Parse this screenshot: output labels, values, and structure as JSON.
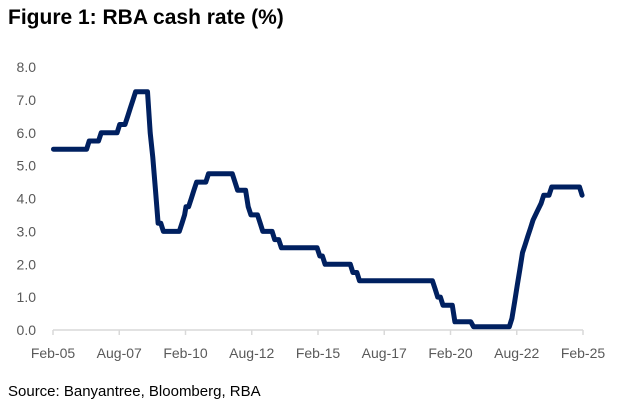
{
  "chart_data": {
    "type": "line",
    "title": "Figure 1: RBA cash rate (%)",
    "source": "Source: Banyantree, Bloomberg, RBA",
    "xlabel": "",
    "ylabel": "",
    "ylim": [
      0,
      8
    ],
    "xlim": [
      2005.083,
      2025.083
    ],
    "y_ticks": [
      "0.0",
      "1.0",
      "2.0",
      "3.0",
      "4.0",
      "5.0",
      "6.0",
      "7.0",
      "8.0"
    ],
    "x_ticks": [
      {
        "label": "Feb-05",
        "x": 2005.083
      },
      {
        "label": "Aug-07",
        "x": 2007.583
      },
      {
        "label": "Feb-10",
        "x": 2010.083
      },
      {
        "label": "Aug-12",
        "x": 2012.583
      },
      {
        "label": "Feb-15",
        "x": 2015.083
      },
      {
        "label": "Aug-17",
        "x": 2017.583
      },
      {
        "label": "Feb-20",
        "x": 2020.083
      },
      {
        "label": "Aug-22",
        "x": 2022.583
      },
      {
        "label": "Feb-25",
        "x": 2025.083
      }
    ],
    "grid": false,
    "color": "#002060",
    "series": [
      {
        "name": "RBA cash rate",
        "x": [
          2005.1,
          2006.35,
          2006.45,
          2006.8,
          2006.9,
          2007.5,
          2007.6,
          2007.8,
          2007.9,
          2008.0,
          2008.1,
          2008.2,
          2008.3,
          2008.65,
          2008.75,
          2008.85,
          2008.95,
          2009.05,
          2009.15,
          2009.25,
          2009.3,
          2009.85,
          2009.95,
          2010.05,
          2010.1,
          2010.2,
          2010.3,
          2010.4,
          2010.5,
          2010.85,
          2010.95,
          2011.85,
          2011.95,
          2012.05,
          2012.35,
          2012.45,
          2012.55,
          2012.8,
          2012.9,
          2013.0,
          2013.35,
          2013.45,
          2013.6,
          2013.7,
          2015.05,
          2015.15,
          2015.25,
          2015.35,
          2016.3,
          2016.4,
          2016.55,
          2016.65,
          2019.4,
          2019.5,
          2019.6,
          2019.7,
          2019.8,
          2020.15,
          2020.25,
          2020.85,
          2020.95,
          2022.3,
          2022.4,
          2022.5,
          2022.6,
          2022.7,
          2022.8,
          2022.9,
          2023.0,
          2023.1,
          2023.2,
          2023.35,
          2023.5,
          2023.6,
          2023.8,
          2023.9,
          2024.95,
          2025.05
        ],
        "y": [
          5.5,
          5.5,
          5.75,
          5.75,
          6.0,
          6.0,
          6.25,
          6.25,
          6.5,
          6.75,
          7.0,
          7.25,
          7.25,
          7.25,
          6.0,
          5.25,
          4.25,
          3.25,
          3.25,
          3.0,
          3.0,
          3.0,
          3.25,
          3.5,
          3.75,
          3.75,
          4.0,
          4.25,
          4.5,
          4.5,
          4.75,
          4.75,
          4.5,
          4.25,
          4.25,
          3.75,
          3.5,
          3.5,
          3.25,
          3.0,
          3.0,
          2.75,
          2.75,
          2.5,
          2.5,
          2.25,
          2.25,
          2.0,
          2.0,
          1.75,
          1.75,
          1.5,
          1.5,
          1.25,
          1.0,
          1.0,
          0.75,
          0.75,
          0.25,
          0.25,
          0.1,
          0.1,
          0.35,
          0.85,
          1.35,
          1.85,
          2.35,
          2.6,
          2.85,
          3.1,
          3.35,
          3.6,
          3.85,
          4.1,
          4.1,
          4.35,
          4.35,
          4.1
        ]
      }
    ]
  }
}
